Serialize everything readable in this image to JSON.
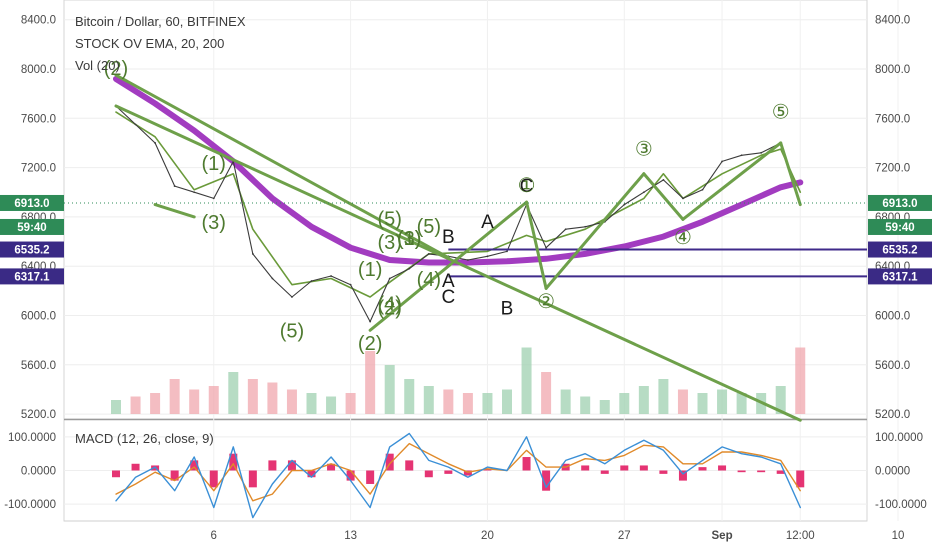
{
  "header": {
    "title": "Bitcoin / Dollar, 60, BITFINEX",
    "indicator": "STOCK OV EMA, 20, 200",
    "volume": "Vol (20)",
    "macd": "MACD (12, 26, close, 9)"
  },
  "colors": {
    "price": "#3b3b3b",
    "ema_fast": "#6a9a3a",
    "ema_slow": "#a23cc0",
    "trend": "#6ea04a",
    "hline": "#3f2a8a",
    "macd_line": "#3a8fd6",
    "signal_line": "#e08a2a",
    "histogram": "#e0105a",
    "last_price_tag": "#2e8b57",
    "level_tag": "#3a2a85"
  },
  "tags": {
    "last_price": "6913.0",
    "countdown": "59:40",
    "level_upper": "6535.2",
    "level_lower": "6317.1"
  },
  "chart_data": [
    {
      "type": "line",
      "title": "Bitcoin / Dollar, 60, BITFINEX",
      "xlabel": "",
      "ylabel": "",
      "x_ticks": [
        "6",
        "13",
        "20",
        "27",
        "Sep",
        "12:00",
        "10"
      ],
      "xlim": [
        "Aug 1",
        "Sep 12"
      ],
      "ylim": [
        5160,
        8560
      ],
      "y_ticks": [
        "8400.0",
        "8000.0",
        "7600.0",
        "7200.0",
        "6800.0",
        "6400.0",
        "6000.0",
        "5600.0",
        "5200.0"
      ],
      "grid": true,
      "series": [
        {
          "name": "price",
          "x": [
            "Aug 1",
            "Aug 2",
            "Aug 3",
            "Aug 4",
            "Aug 5",
            "Aug 6",
            "Aug 7",
            "Aug 8",
            "Aug 9",
            "Aug 10",
            "Aug 11",
            "Aug 12",
            "Aug 13",
            "Aug 14",
            "Aug 15",
            "Aug 16",
            "Aug 17",
            "Aug 18",
            "Aug 19",
            "Aug 20",
            "Aug 21",
            "Aug 22",
            "Aug 23",
            "Aug 24",
            "Aug 25",
            "Aug 26",
            "Aug 27",
            "Aug 28",
            "Aug 29",
            "Aug 30",
            "Aug 31",
            "Sep 1",
            "Sep 2",
            "Sep 3",
            "Sep 4",
            "Sep 5"
          ],
          "values": [
            7700,
            7550,
            7400,
            7050,
            7000,
            6950,
            7250,
            6500,
            6300,
            6150,
            6280,
            6320,
            6250,
            5950,
            6300,
            6380,
            6500,
            6480,
            6450,
            6480,
            6520,
            6900,
            6550,
            6700,
            6720,
            6760,
            6900,
            7000,
            7100,
            6950,
            7020,
            7250,
            7300,
            7320,
            7400,
            6900
          ]
        },
        {
          "name": "ema_fast",
          "x": [
            "Aug 1",
            "Aug 3",
            "Aug 5",
            "Aug 7",
            "Aug 8",
            "Aug 10",
            "Aug 12",
            "Aug 14",
            "Aug 15",
            "Aug 17",
            "Aug 20",
            "Aug 22",
            "Aug 23",
            "Aug 25",
            "Aug 28",
            "Aug 29",
            "Aug 30",
            "Sep 1",
            "Sep 3",
            "Sep 4",
            "Sep 5"
          ],
          "values": [
            7650,
            7450,
            7020,
            7150,
            6700,
            6250,
            6300,
            6150,
            6270,
            6500,
            6520,
            6650,
            6600,
            6700,
            6950,
            7150,
            6950,
            7150,
            7300,
            7350,
            7000
          ]
        },
        {
          "name": "ema_slow",
          "x": [
            "Aug 1",
            "Aug 3",
            "Aug 5",
            "Aug 7",
            "Aug 9",
            "Aug 11",
            "Aug 13",
            "Aug 15",
            "Aug 17",
            "Aug 19",
            "Aug 21",
            "Aug 23",
            "Aug 25",
            "Aug 27",
            "Aug 29",
            "Aug 31",
            "Sep 2",
            "Sep 4",
            "Sep 5"
          ],
          "values": [
            7920,
            7720,
            7500,
            7250,
            6950,
            6720,
            6550,
            6450,
            6430,
            6430,
            6440,
            6460,
            6500,
            6560,
            6640,
            6760,
            6900,
            7040,
            7080
          ]
        },
        {
          "name": "trend_lines",
          "segments": [
            [
              [
                "Aug 1",
                7700
              ],
              [
                "Sep 5",
                5150
              ]
            ],
            [
              [
                "Aug 1",
                7950
              ],
              [
                "Aug 18",
                6470
              ]
            ],
            [
              [
                "Aug 14",
                5880
              ],
              [
                "Aug 22",
                6920
              ]
            ],
            [
              [
                "Aug 22",
                6920
              ],
              [
                "Aug 23",
                6220
              ]
            ],
            [
              [
                "Aug 23",
                6220
              ],
              [
                "Aug 28",
                7150
              ]
            ],
            [
              [
                "Aug 28",
                7150
              ],
              [
                "Aug 30",
                6780
              ]
            ],
            [
              [
                "Aug 30",
                6780
              ],
              [
                "Sep 4",
                7400
              ]
            ],
            [
              [
                "Sep 4",
                7400
              ],
              [
                "Sep 5",
                6900
              ]
            ],
            [
              [
                "Aug 3",
                6900
              ],
              [
                "Aug 5",
                6800
              ]
            ]
          ]
        },
        {
          "name": "horizontal_levels",
          "values": [
            6535.2,
            6317.1
          ]
        }
      ],
      "annotations": [
        {
          "text": "(2)",
          "x": "Aug 1",
          "y": 7950
        },
        {
          "text": "(1)",
          "x": "Aug 6",
          "y": 7180
        },
        {
          "text": "(3)",
          "x": "Aug 6",
          "y": 6700
        },
        {
          "text": "(5)",
          "x": "Aug 10",
          "y": 5820
        },
        {
          "text": "(2)",
          "x": "Aug 14",
          "y": 5720
        },
        {
          "text": "(1)",
          "x": "Aug 14",
          "y": 6320
        },
        {
          "text": "(4)",
          "x": "Aug 15",
          "y": 6040
        },
        {
          "text": "(2)",
          "x": "Aug 15",
          "y": 6010
        },
        {
          "text": "(3)",
          "x": "Aug 15",
          "y": 6540
        },
        {
          "text": "(5)",
          "x": "Aug 15",
          "y": 6730
        },
        {
          "text": "(1)",
          "x": "Aug 16",
          "y": 6570
        },
        {
          "text": "(3)",
          "x": "Aug 16",
          "y": 6570
        },
        {
          "text": "(5)",
          "x": "Aug 17",
          "y": 6670
        },
        {
          "text": "(4)",
          "x": "Aug 17",
          "y": 6240
        },
        {
          "text": "A",
          "x": "Aug 18",
          "y": 6230
        },
        {
          "text": "B",
          "x": "Aug 18",
          "y": 6590
        },
        {
          "text": "C",
          "x": "Aug 18",
          "y": 6100
        },
        {
          "text": "A",
          "x": "Aug 20",
          "y": 6710
        },
        {
          "text": "B",
          "x": "Aug 21",
          "y": 6010
        },
        {
          "text": "C",
          "x": "Aug 22",
          "y": 7000
        },
        {
          "text": "①",
          "x": "Aug 22",
          "y": 7000
        },
        {
          "text": "②",
          "x": "Aug 23",
          "y": 6060
        },
        {
          "text": "③",
          "x": "Aug 28",
          "y": 7300
        },
        {
          "text": "④",
          "x": "Aug 30",
          "y": 6580
        },
        {
          "text": "⑤",
          "x": "Sep 4",
          "y": 7600
        }
      ]
    },
    {
      "type": "bar",
      "title": "Vol (20)",
      "ylim": [
        0,
        1
      ],
      "categories": [
        "Aug 1",
        "Aug 2",
        "Aug 3",
        "Aug 4",
        "Aug 5",
        "Aug 6",
        "Aug 7",
        "Aug 8",
        "Aug 9",
        "Aug 10",
        "Aug 11",
        "Aug 12",
        "Aug 13",
        "Aug 14",
        "Aug 15",
        "Aug 16",
        "Aug 17",
        "Aug 18",
        "Aug 19",
        "Aug 20",
        "Aug 21",
        "Aug 22",
        "Aug 23",
        "Aug 24",
        "Aug 25",
        "Aug 26",
        "Aug 27",
        "Aug 28",
        "Aug 29",
        "Aug 30",
        "Aug 31",
        "Sep 1",
        "Sep 2",
        "Sep 3",
        "Sep 4",
        "Sep 5"
      ],
      "values": [
        0.2,
        0.25,
        0.3,
        0.5,
        0.35,
        0.4,
        0.6,
        0.5,
        0.45,
        0.35,
        0.3,
        0.25,
        0.3,
        0.9,
        0.7,
        0.5,
        0.4,
        0.35,
        0.3,
        0.3,
        0.35,
        0.95,
        0.6,
        0.35,
        0.25,
        0.2,
        0.3,
        0.4,
        0.5,
        0.35,
        0.3,
        0.35,
        0.3,
        0.3,
        0.4,
        0.95
      ]
    },
    {
      "type": "line",
      "title": "MACD (12, 26, close, 9)",
      "ylim": [
        -150,
        150
      ],
      "y_ticks": [
        "100.0000",
        "0.0000",
        "-100.0000"
      ],
      "x": [
        "Aug 1",
        "Aug 2",
        "Aug 3",
        "Aug 4",
        "Aug 5",
        "Aug 6",
        "Aug 7",
        "Aug 8",
        "Aug 9",
        "Aug 10",
        "Aug 11",
        "Aug 12",
        "Aug 13",
        "Aug 14",
        "Aug 15",
        "Aug 16",
        "Aug 17",
        "Aug 18",
        "Aug 19",
        "Aug 20",
        "Aug 21",
        "Aug 22",
        "Aug 23",
        "Aug 24",
        "Aug 25",
        "Aug 26",
        "Aug 27",
        "Aug 28",
        "Aug 29",
        "Aug 30",
        "Aug 31",
        "Sep 1",
        "Sep 2",
        "Sep 3",
        "Sep 4",
        "Sep 5"
      ],
      "series": [
        {
          "name": "macd",
          "values": [
            -90,
            -20,
            10,
            -60,
            40,
            -110,
            70,
            -140,
            -40,
            30,
            -20,
            40,
            -30,
            -110,
            70,
            110,
            30,
            10,
            -20,
            10,
            0,
            100,
            -50,
            30,
            50,
            20,
            60,
            90,
            60,
            -10,
            30,
            70,
            50,
            40,
            20,
            -110
          ]
        },
        {
          "name": "signal",
          "values": [
            -70,
            -40,
            -5,
            -30,
            10,
            -60,
            20,
            -90,
            -70,
            0,
            0,
            20,
            0,
            -70,
            20,
            80,
            50,
            20,
            -5,
            5,
            0,
            60,
            10,
            10,
            35,
            30,
            45,
            75,
            70,
            20,
            20,
            55,
            55,
            45,
            30,
            -60
          ]
        }
      ]
    }
  ]
}
